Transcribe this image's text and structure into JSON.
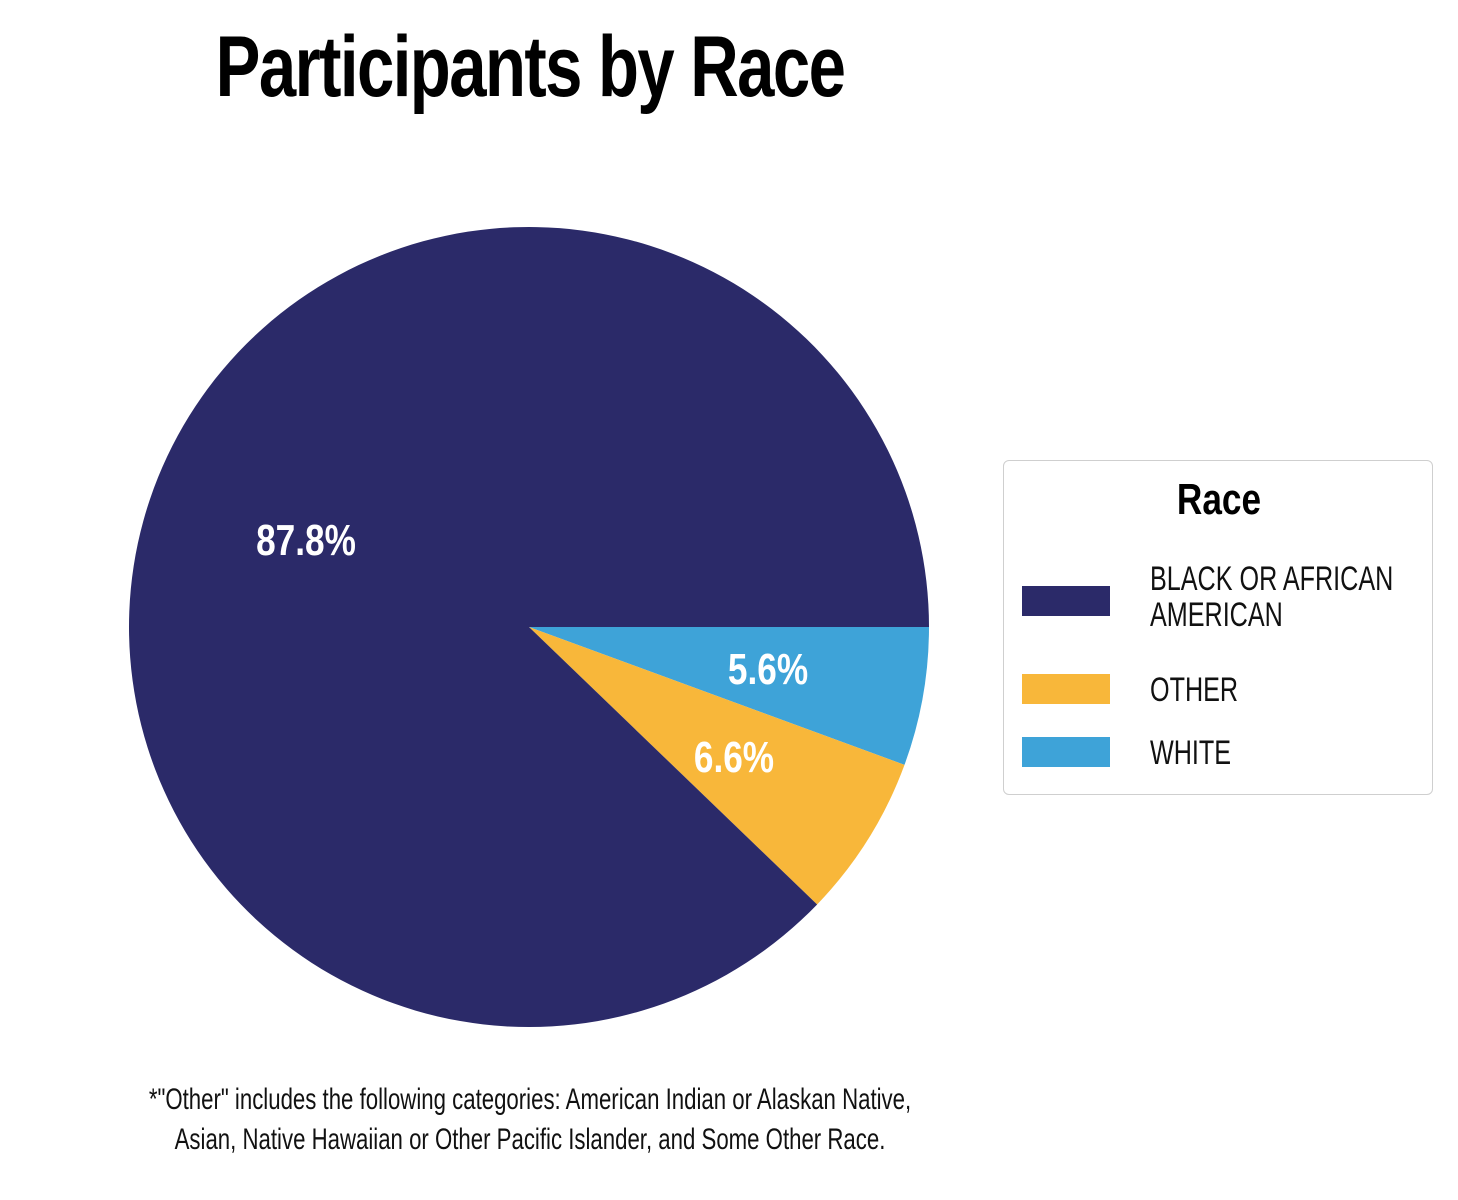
{
  "chart_data": {
    "type": "pie",
    "title": "Participants by Race",
    "slices": [
      {
        "label": "BLACK OR AFRICAN AMERICAN",
        "value": 87.8,
        "display": "87.8%",
        "color": "#2b2a69"
      },
      {
        "label": "OTHER",
        "value": 6.6,
        "display": "6.6%",
        "color": "#f8b73a"
      },
      {
        "label": "WHITE",
        "value": 5.6,
        "display": "5.6%",
        "color": "#3ea3d8"
      }
    ],
    "legend": {
      "title": "Race",
      "placement": "right"
    },
    "footnote": "*\"Other\" includes the following categories: American Indian or Alaskan Native, Asian, Native Hawaiian or Other Pacific Islander, and Some Other Race."
  }
}
